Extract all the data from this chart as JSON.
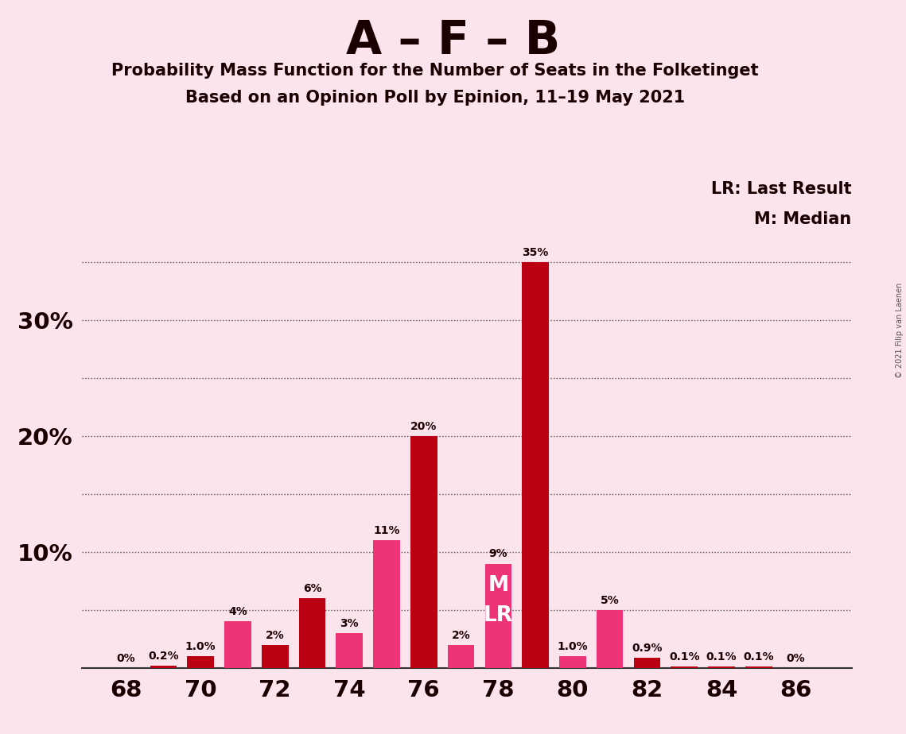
{
  "title": "A – F – B",
  "subtitle1": "Probability Mass Function for the Number of Seats in the Folketinget",
  "subtitle2": "Based on an Opinion Poll by Epinion, 11–19 May 2021",
  "copyright": "© 2021 Filip van Laenen",
  "seats": [
    68,
    69,
    70,
    71,
    72,
    73,
    74,
    75,
    76,
    77,
    78,
    79,
    80,
    81,
    82,
    83,
    84,
    85,
    86
  ],
  "values": [
    0.0,
    0.2,
    1.0,
    4.0,
    2.0,
    6.0,
    3.0,
    11.0,
    20.0,
    2.0,
    9.0,
    35.0,
    1.0,
    5.0,
    0.9,
    0.1,
    0.1,
    0.1,
    0.0
  ],
  "labels": [
    "0%",
    "0.2%",
    "1.0%",
    "4%",
    "2%",
    "6%",
    "3%",
    "11%",
    "20%",
    "2%",
    "9%",
    "35%",
    "1.0%",
    "5%",
    "0.9%",
    "0.1%",
    "0.1%",
    "0.1%",
    "0%"
  ],
  "pink_seats": [
    71,
    74,
    75,
    77,
    78,
    80,
    81
  ],
  "background_color": "#fce4ec",
  "dark_red": "#bb0011",
  "pink": "#ee3377",
  "legend_lr": "LR: Last Result",
  "legend_m": "M: Median",
  "ylim_max": 38,
  "hlines": [
    5,
    10,
    15,
    20,
    25,
    30,
    35
  ],
  "bar_width": 0.72
}
